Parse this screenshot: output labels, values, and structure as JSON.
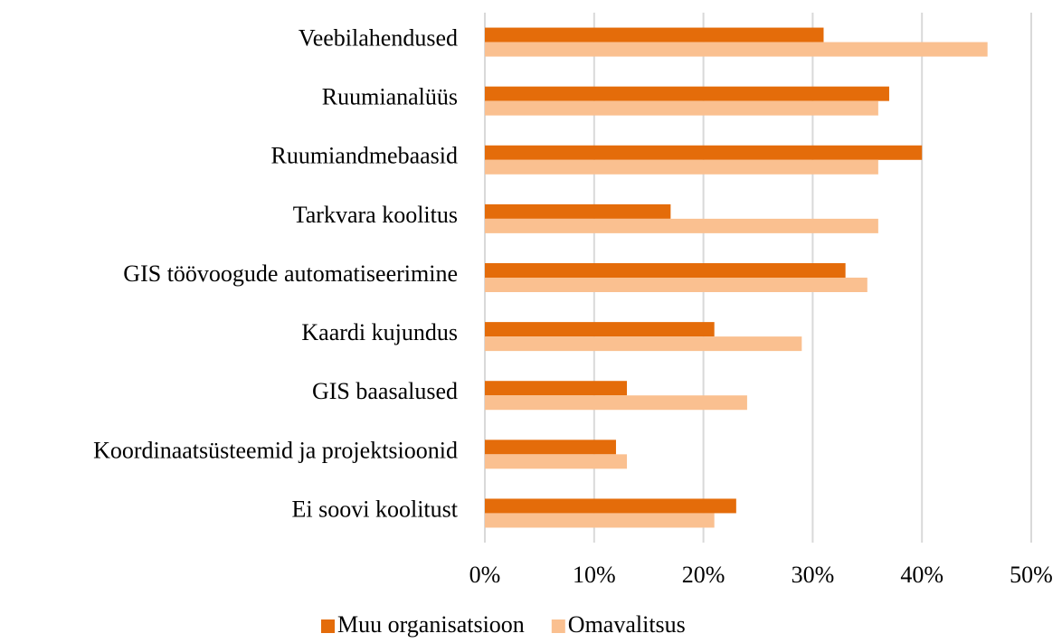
{
  "chart_data": {
    "type": "bar",
    "orientation": "horizontal",
    "categories": [
      "Veebilahendused",
      "Ruumianalüüs",
      "Ruumiandmebaasid",
      "Tarkvara koolitus",
      "GIS töövoogude automatiseerimine",
      "Kaardi kujundus",
      "GIS baasalused",
      "Koordinaatsüsteemid ja projektsioonid",
      "Ei soovi koolitust"
    ],
    "series": [
      {
        "name": "Muu organisatsioon",
        "color": "#e46c0a",
        "values": [
          31,
          37,
          40,
          17,
          33,
          21,
          13,
          12,
          23
        ]
      },
      {
        "name": "Omavalitsus",
        "color": "#fac090",
        "values": [
          46,
          36,
          36,
          36,
          35,
          29,
          24,
          13,
          21
        ]
      }
    ],
    "xlim": [
      0,
      50
    ],
    "xticks": [
      {
        "value": 0,
        "label": "0%"
      },
      {
        "value": 10,
        "label": "10%"
      },
      {
        "value": 20,
        "label": "20%"
      },
      {
        "value": 30,
        "label": "30%"
      },
      {
        "value": 40,
        "label": "40%"
      },
      {
        "value": 50,
        "label": "50%"
      }
    ],
    "grid": true,
    "legend": "bottom"
  }
}
